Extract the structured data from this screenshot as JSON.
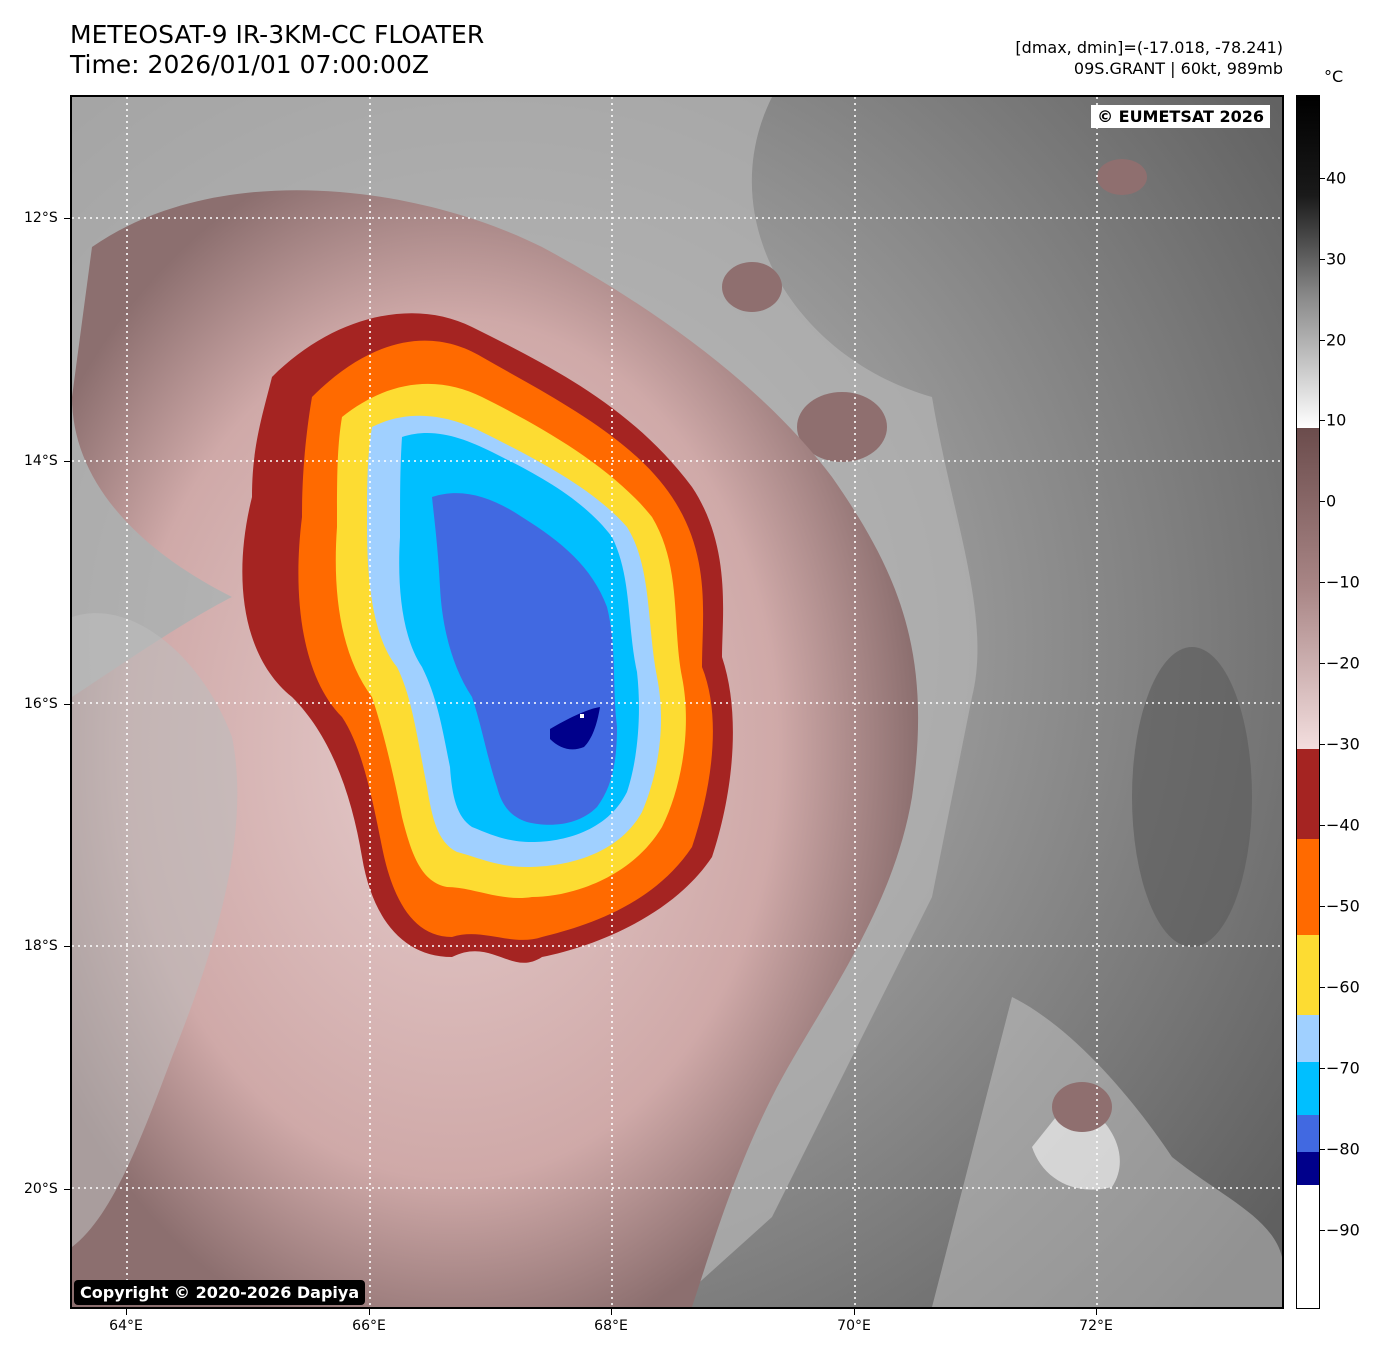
{
  "header": {
    "title_line1": "METEOSAT-9 IR-3KM-CC FLOATER",
    "title_line2": "Time: 2026/01/01 07:00:00Z",
    "range_line": "[dmax, dmin]=(-17.018, -78.241)",
    "storm_line": "09S.GRANT | 60kt, 989mb"
  },
  "map": {
    "eumetsat_credit": "© EUMETSAT 2026",
    "copyright": "Copyright © 2020-2026 Dapiya",
    "lat_labels": [
      "12°S",
      "14°S",
      "16°S",
      "18°S",
      "20°S"
    ],
    "lon_labels": [
      "64°E",
      "66°E",
      "68°E",
      "70°E",
      "72°E"
    ]
  },
  "colorbar": {
    "unit": "°C",
    "ticks": [
      "40",
      "30",
      "20",
      "10",
      "0",
      "−10",
      "−20",
      "−30",
      "−40",
      "−50",
      "−60",
      "−70",
      "−80",
      "−90"
    ],
    "segments": [
      {
        "range": "> 10",
        "color": "gradient-gray"
      },
      {
        "range": "10 to -30",
        "color": "gradient-brown-pink"
      },
      {
        "range": "-30 to -41",
        "color": "#a52422"
      },
      {
        "range": "-41 to -53",
        "color": "#ff6a00"
      },
      {
        "range": "-53 to -60",
        "color": "#fddc32"
      },
      {
        "range": "-60 to -66",
        "color": "#a0d0ff"
      },
      {
        "range": "-66 to -73",
        "color": "#00bfff"
      },
      {
        "range": "-73 to -78",
        "color": "#4169e1"
      },
      {
        "range": "-78 to -82",
        "color": "#00008b"
      },
      {
        "range": "< -82",
        "color": "#ffffff"
      }
    ]
  }
}
